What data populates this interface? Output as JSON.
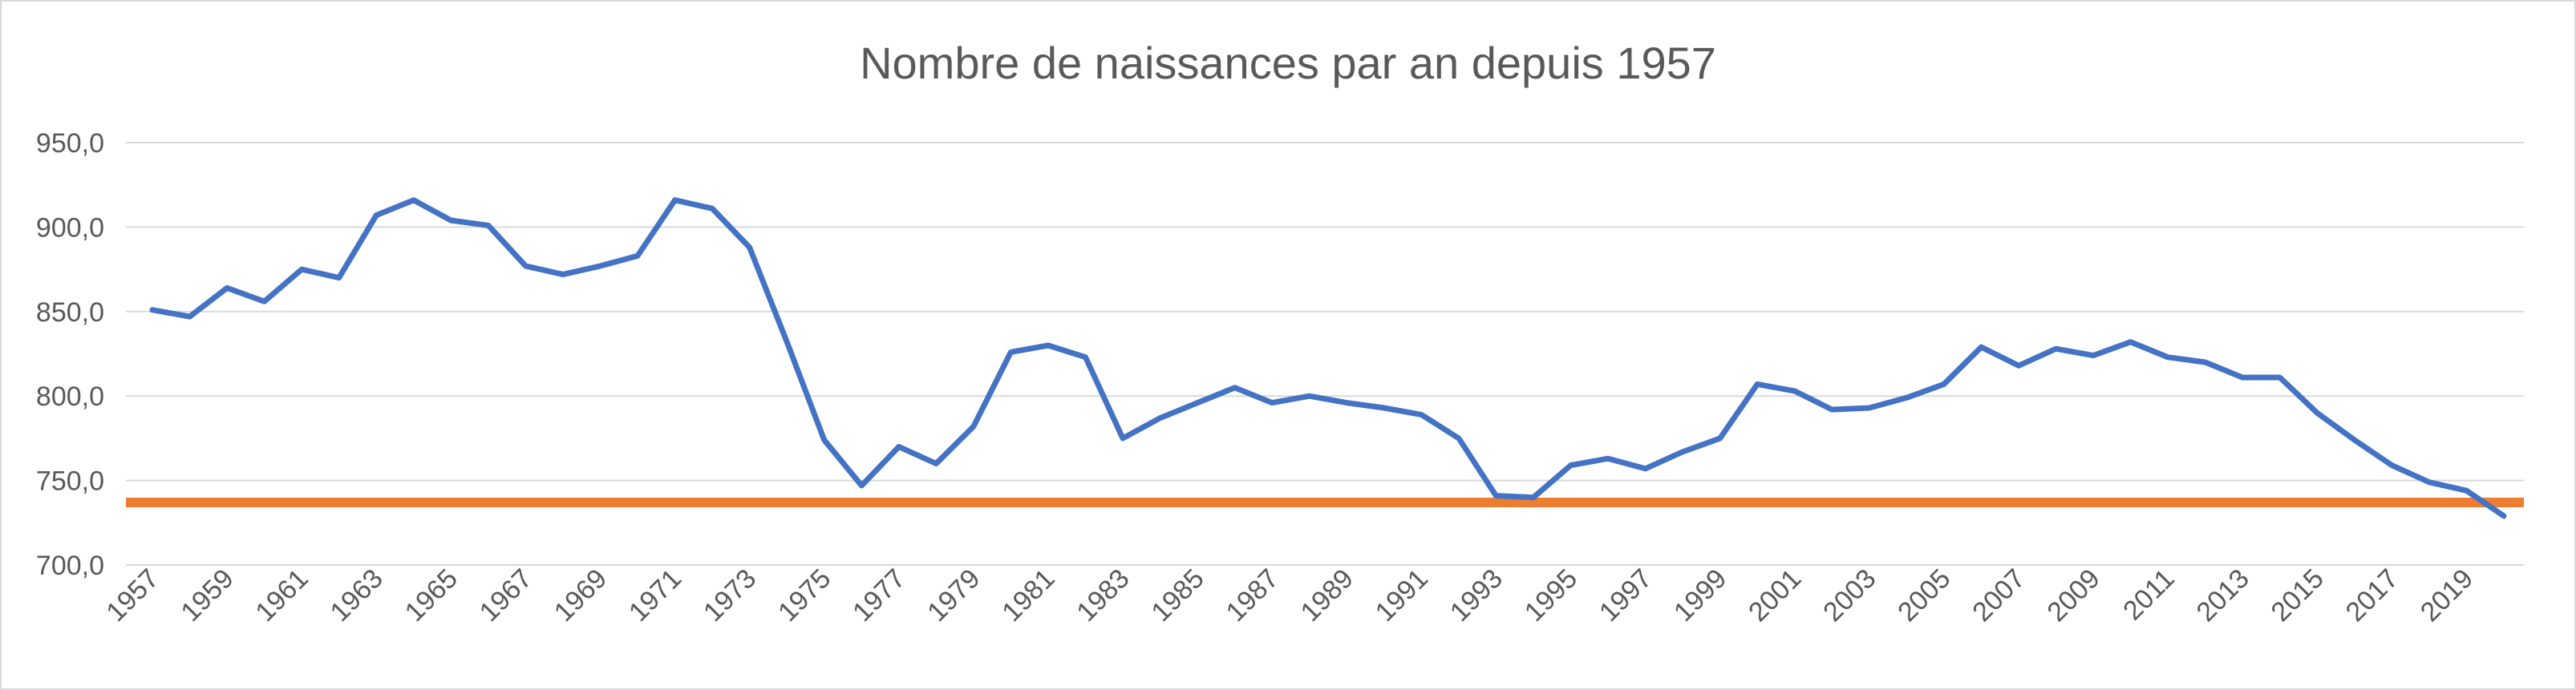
{
  "chart_data": {
    "type": "line",
    "title": "Nombre de naissances par an depuis 1957",
    "xlabel": "",
    "ylabel": "",
    "ylim": [
      700,
      950
    ],
    "ytick_values": [
      700,
      750,
      800,
      850,
      900,
      950
    ],
    "ytick_labels": [
      "700,0",
      "750,0",
      "800,0",
      "850,0",
      "900,0",
      "950,0"
    ],
    "x": [
      1957,
      1958,
      1959,
      1960,
      1961,
      1962,
      1963,
      1964,
      1965,
      1966,
      1967,
      1968,
      1969,
      1970,
      1971,
      1972,
      1973,
      1974,
      1975,
      1976,
      1977,
      1978,
      1979,
      1980,
      1981,
      1982,
      1983,
      1984,
      1985,
      1986,
      1987,
      1988,
      1989,
      1990,
      1991,
      1992,
      1993,
      1994,
      1995,
      1996,
      1997,
      1998,
      1999,
      2000,
      2001,
      2002,
      2003,
      2004,
      2005,
      2006,
      2007,
      2008,
      2009,
      2010,
      2011,
      2012,
      2013,
      2014,
      2015,
      2016,
      2017,
      2018,
      2019,
      2020
    ],
    "xtick_labels": [
      "1957",
      "1959",
      "1961",
      "1963",
      "1965",
      "1967",
      "1969",
      "1971",
      "1973",
      "1975",
      "1977",
      "1979",
      "1981",
      "1983",
      "1985",
      "1987",
      "1989",
      "1991",
      "1993",
      "1995",
      "1997",
      "1999",
      "2001",
      "2003",
      "2005",
      "2007",
      "2009",
      "2011",
      "2013",
      "2015",
      "2017",
      "2019"
    ],
    "grid": true,
    "legend": "none",
    "series": [
      {
        "color": "#4472C4",
        "values": [
          851,
          847,
          864,
          856,
          875,
          870,
          907,
          916,
          904,
          901,
          877,
          872,
          877,
          883,
          916,
          911,
          888,
          832,
          774,
          747,
          770,
          760,
          782,
          826,
          830,
          823,
          775,
          787,
          796,
          805,
          796,
          800,
          796,
          793,
          789,
          775,
          741,
          740,
          759,
          763,
          757,
          767,
          775,
          807,
          803,
          792,
          793,
          799,
          807,
          829,
          818,
          828,
          824,
          832,
          823,
          820,
          811,
          811,
          790,
          774,
          759,
          749,
          744,
          729
        ]
      },
      {
        "color": "#ED7D31",
        "values": [
          737,
          737,
          737,
          737,
          737,
          737,
          737,
          737,
          737,
          737,
          737,
          737,
          737,
          737,
          737,
          737,
          737,
          737,
          737,
          737,
          737,
          737,
          737,
          737,
          737,
          737,
          737,
          737,
          737,
          737,
          737,
          737,
          737,
          737,
          737,
          737,
          737,
          737,
          737,
          737,
          737,
          737,
          737,
          737,
          737,
          737,
          737,
          737,
          737,
          737,
          737,
          737,
          737,
          737,
          737,
          737,
          737,
          737,
          737,
          737,
          737,
          737,
          737,
          737
        ],
        "full_width": true
      }
    ]
  }
}
